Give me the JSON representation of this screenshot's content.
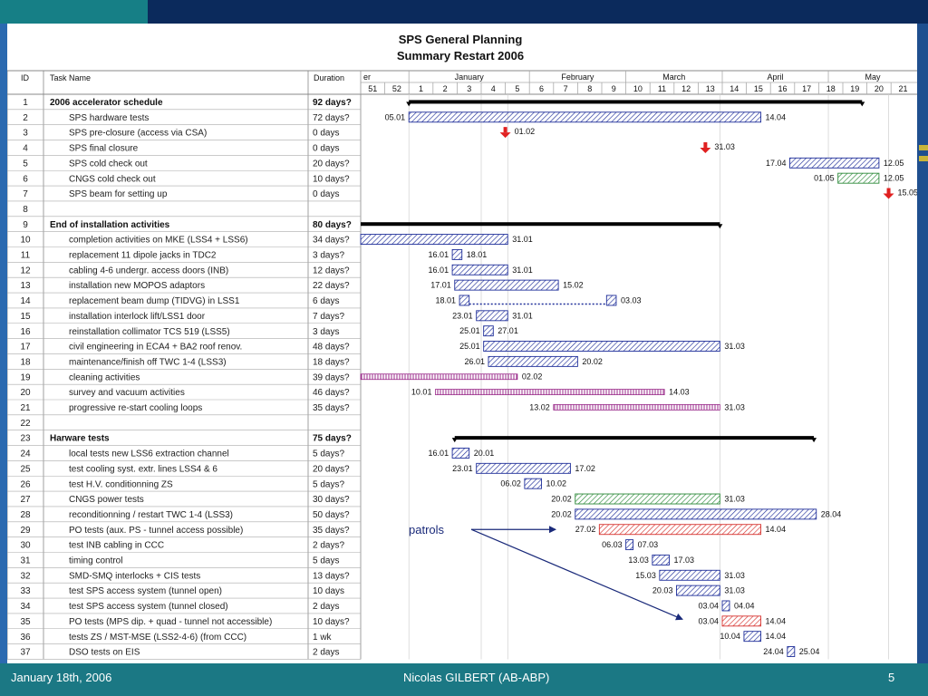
{
  "title_line1": "SPS General Planning",
  "title_line2": "Summary Restart 2006",
  "columns": {
    "id": "ID",
    "task": "Task Name",
    "duration": "Duration"
  },
  "timeline": {
    "months": [
      {
        "label": "er",
        "start": 0,
        "end": 2
      },
      {
        "label": "January",
        "start": 2,
        "end": 7
      },
      {
        "label": "February",
        "start": 7,
        "end": 11
      },
      {
        "label": "March",
        "start": 11,
        "end": 15
      },
      {
        "label": "April",
        "start": 15,
        "end": 19.4
      },
      {
        "label": "May",
        "start": 19.4,
        "end": 24
      }
    ],
    "weeks": [
      "51",
      "52",
      "1",
      "2",
      "3",
      "4",
      "5",
      "6",
      "7",
      "8",
      "9",
      "10",
      "11",
      "12",
      "13",
      "14",
      "15",
      "16",
      "17",
      "18",
      "19",
      "20",
      "21"
    ]
  },
  "chart_data": {
    "type": "gantt",
    "title": "SPS General Planning Summary Restart 2006",
    "tasks": [
      {
        "id": "1",
        "name": "2006 accelerator schedule",
        "duration": "92 days?",
        "bold": true,
        "kind": "summary",
        "start": 2,
        "end": 20.8
      },
      {
        "id": "2",
        "name": "SPS hardware tests",
        "duration": "72 days?",
        "indent": true,
        "kind": "bar",
        "style": "blue",
        "start": 2,
        "end": 16.6,
        "start_label": "05.01",
        "end_label": "14.04"
      },
      {
        "id": "3",
        "name": "SPS pre-closure (access via CSA)",
        "duration": "0 days",
        "indent": true,
        "kind": "milestone",
        "at": 6.0,
        "label": "01.02"
      },
      {
        "id": "4",
        "name": "SPS final closure",
        "duration": "0 days",
        "indent": true,
        "kind": "milestone",
        "at": 14.3,
        "label": "31.03"
      },
      {
        "id": "5",
        "name": "SPS cold check out",
        "duration": "20 days?",
        "indent": true,
        "kind": "bar",
        "style": "blue",
        "start": 17.8,
        "end": 21.5,
        "start_label": "17.04",
        "end_label": "12.05"
      },
      {
        "id": "6",
        "name": "CNGS cold check out",
        "duration": "10 days?",
        "indent": true,
        "kind": "bar",
        "style": "green",
        "start": 19.8,
        "end": 21.5,
        "start_label": "01.05",
        "end_label": "12.05"
      },
      {
        "id": "7",
        "name": "SPS beam for setting up",
        "duration": "0 days",
        "indent": true,
        "kind": "milestone",
        "at": 21.9,
        "label": "15.05"
      },
      {
        "id": "8",
        "name": "",
        "duration": "",
        "kind": "none"
      },
      {
        "id": "9",
        "name": "End of installation activities",
        "duration": "80 days?",
        "bold": true,
        "kind": "summary",
        "start": 0,
        "end": 14.9
      },
      {
        "id": "10",
        "name": "completion activities on MKE (LSS4 + LSS6)",
        "duration": "34 days?",
        "indent": true,
        "kind": "bar",
        "style": "blue",
        "start": 0,
        "end": 6.1,
        "end_label": "31.01"
      },
      {
        "id": "11",
        "name": "replacement 11 dipole jacks in TDC2",
        "duration": "3 days?",
        "indent": true,
        "kind": "bar",
        "style": "blue",
        "start": 3.8,
        "end": 4.2,
        "start_label": "16.01",
        "end_label": "18.01"
      },
      {
        "id": "12",
        "name": "cabling 4-6 undergr. access doors (INB)",
        "duration": "12 days?",
        "indent": true,
        "kind": "bar",
        "style": "blue",
        "start": 3.8,
        "end": 6.1,
        "start_label": "16.01",
        "end_label": "31.01"
      },
      {
        "id": "13",
        "name": "installation new MOPOS adaptors",
        "duration": "22 days?",
        "indent": true,
        "kind": "bar",
        "style": "blue",
        "start": 3.9,
        "end": 8.2,
        "start_label": "17.01",
        "end_label": "15.02"
      },
      {
        "id": "14",
        "name": "replacement beam dump (TIDVG) in LSS1",
        "duration": "6 days",
        "indent": true,
        "kind": "split",
        "style": "blue",
        "start": 4.1,
        "end": 10.6,
        "seg1_end": 4.5,
        "seg2_start": 10.2,
        "start_label": "18.01",
        "end_label": "03.03"
      },
      {
        "id": "15",
        "name": "installation interlock lift/LSS1 door",
        "duration": "7 days?",
        "indent": true,
        "kind": "bar",
        "style": "blue",
        "start": 4.8,
        "end": 6.1,
        "start_label": "23.01",
        "end_label": "31.01"
      },
      {
        "id": "16",
        "name": "reinstallation collimator TCS 519 (LSS5)",
        "duration": "3 days",
        "indent": true,
        "kind": "bar",
        "style": "blue",
        "start": 5.1,
        "end": 5.5,
        "start_label": "25.01",
        "end_label": "27.01"
      },
      {
        "id": "17",
        "name": "civil engineering in ECA4 + BA2 roof renov.",
        "duration": "48 days?",
        "indent": true,
        "kind": "bar",
        "style": "blue",
        "start": 5.1,
        "end": 14.9,
        "start_label": "25.01",
        "end_label": "31.03"
      },
      {
        "id": "18",
        "name": "maintenance/finish off TWC 1-4 (LSS3)",
        "duration": "18 days?",
        "indent": true,
        "kind": "bar",
        "style": "blue",
        "start": 5.3,
        "end": 9.0,
        "start_label": "26.01",
        "end_label": "20.02"
      },
      {
        "id": "19",
        "name": "cleaning activities",
        "duration": "39 days?",
        "indent": true,
        "kind": "bar",
        "style": "purple",
        "start": 0,
        "end": 6.5,
        "end_label": "02.02"
      },
      {
        "id": "20",
        "name": "survey and vacuum activities",
        "duration": "46 days?",
        "indent": true,
        "kind": "bar",
        "style": "purple",
        "start": 3.1,
        "end": 12.6,
        "start_label": "10.01",
        "end_label": "14.03"
      },
      {
        "id": "21",
        "name": "progressive  re-start cooling loops",
        "duration": "35 days?",
        "indent": true,
        "kind": "bar",
        "style": "purple",
        "start": 8.0,
        "end": 14.9,
        "start_label": "13.02",
        "end_label": "31.03"
      },
      {
        "id": "22",
        "name": "",
        "duration": "",
        "kind": "none"
      },
      {
        "id": "23",
        "name": "Harware tests",
        "duration": "75 days?",
        "bold": true,
        "kind": "summary",
        "start": 3.9,
        "end": 18.8
      },
      {
        "id": "24",
        "name": "local tests new LSS6 extraction channel",
        "duration": "5 days?",
        "indent": true,
        "kind": "bar",
        "style": "blue",
        "start": 3.8,
        "end": 4.5,
        "start_label": "16.01",
        "end_label": "20.01"
      },
      {
        "id": "25",
        "name": "test cooling syst. extr. lines LSS4 & 6",
        "duration": "20 days?",
        "indent": true,
        "kind": "bar",
        "style": "blue",
        "start": 4.8,
        "end": 8.7,
        "start_label": "23.01",
        "end_label": "17.02"
      },
      {
        "id": "26",
        "name": "test H.V. conditionning ZS",
        "duration": "5 days?",
        "indent": true,
        "kind": "bar",
        "style": "blue",
        "start": 6.8,
        "end": 7.5,
        "start_label": "06.02",
        "end_label": "10.02"
      },
      {
        "id": "27",
        "name": "CNGS power tests",
        "duration": "30 days?",
        "indent": true,
        "kind": "bar",
        "style": "green",
        "start": 8.9,
        "end": 14.9,
        "start_label": "20.02",
        "end_label": "31.03"
      },
      {
        "id": "28",
        "name": "reconditionning / restart TWC 1-4 (LSS3)",
        "duration": "50 days?",
        "indent": true,
        "kind": "bar",
        "style": "blue",
        "start": 8.9,
        "end": 18.9,
        "start_label": "20.02",
        "end_label": "28.04"
      },
      {
        "id": "29",
        "name": "PO tests (aux. PS - tunnel access possible)",
        "duration": "35 days?",
        "indent": true,
        "kind": "bar",
        "style": "red",
        "start": 9.9,
        "end": 16.6,
        "start_label": "27.02",
        "end_label": "14.04"
      },
      {
        "id": "30",
        "name": "test INB cabling in CCC",
        "duration": "2 days?",
        "indent": true,
        "kind": "bar",
        "style": "blue",
        "start": 11.0,
        "end": 11.3,
        "start_label": "06.03",
        "end_label": "07.03"
      },
      {
        "id": "31",
        "name": "timing control",
        "duration": "5 days",
        "indent": true,
        "kind": "bar",
        "style": "blue",
        "start": 12.1,
        "end": 12.8,
        "start_label": "13.03",
        "end_label": "17.03"
      },
      {
        "id": "32",
        "name": "SMD-SMQ interlocks + CIS tests",
        "duration": "13 days?",
        "indent": true,
        "kind": "bar",
        "style": "blue",
        "start": 12.4,
        "end": 14.9,
        "start_label": "15.03",
        "end_label": "31.03"
      },
      {
        "id": "33",
        "name": "test SPS access system (tunnel open)",
        "duration": "10 days",
        "indent": true,
        "kind": "bar",
        "style": "blue",
        "start": 13.1,
        "end": 14.9,
        "start_label": "20.03",
        "end_label": "31.03"
      },
      {
        "id": "34",
        "name": "test SPS access system (tunnel closed)",
        "duration": "2 days",
        "indent": true,
        "kind": "bar",
        "style": "blue",
        "start": 15.0,
        "end": 15.3,
        "start_label": "03.04",
        "end_label": "04.04"
      },
      {
        "id": "35",
        "name": "PO tests (MPS dip. + quad - tunnel not accessible)",
        "duration": "10 days?",
        "indent": true,
        "kind": "bar",
        "style": "red",
        "start": 15.0,
        "end": 16.6,
        "start_label": "03.04",
        "end_label": "14.04"
      },
      {
        "id": "36",
        "name": "tests ZS / MST-MSE (LSS2-4-6) (from CCC)",
        "duration": "1 wk",
        "indent": true,
        "kind": "bar",
        "style": "blue",
        "start": 15.9,
        "end": 16.6,
        "start_label": "10.04",
        "end_label": "14.04"
      },
      {
        "id": "37",
        "name": "DSO tests on EIS",
        "duration": "2 days",
        "indent": true,
        "kind": "bar",
        "style": "blue",
        "start": 17.7,
        "end": 18.0,
        "start_label": "24.04",
        "end_label": "25.04"
      }
    ],
    "annotation": {
      "text": "patrols",
      "targets": [
        "29",
        "35"
      ]
    }
  },
  "footer": {
    "date": "January 18th, 2006",
    "author": "Nicolas GILBERT (AB-ABP)",
    "page": "5"
  },
  "colors": {
    "blue": "#1f2f9a",
    "green": "#2d8a3a",
    "purple": "#9a2a8a",
    "red": "#d6322e",
    "milestone": "#e02020",
    "annotation": "#1a2a7a"
  }
}
